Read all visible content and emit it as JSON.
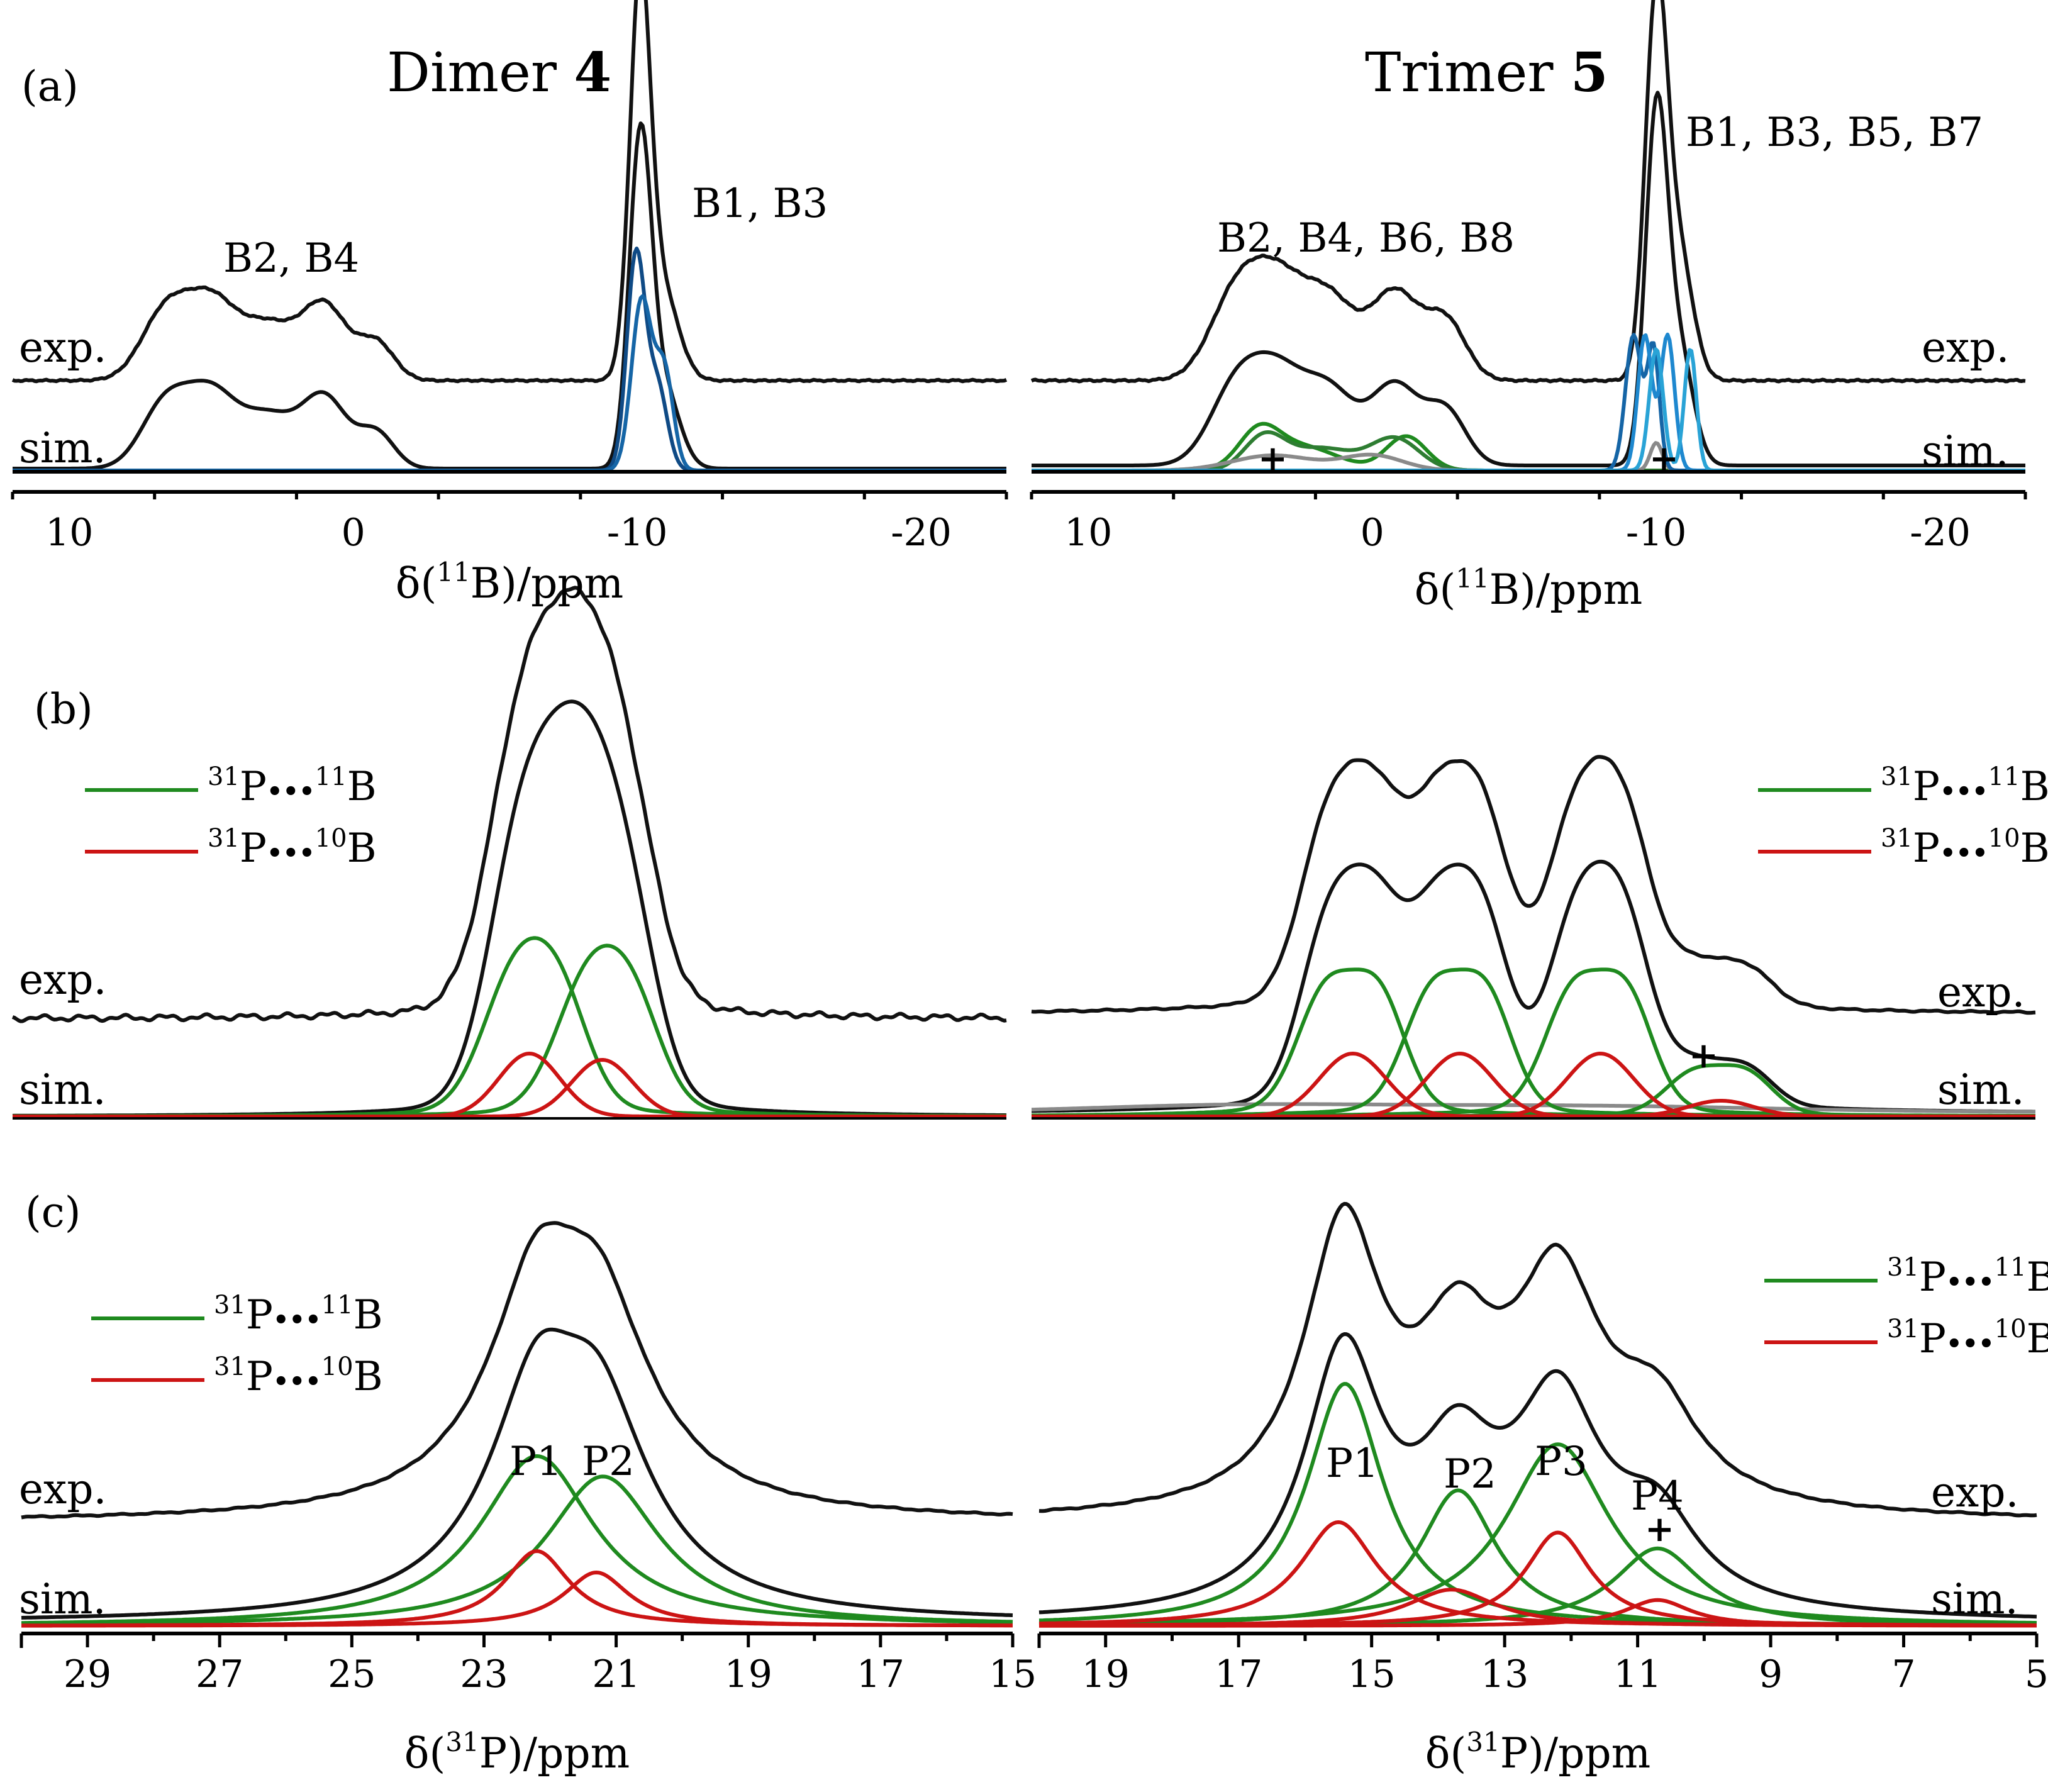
{
  "figure": {
    "panel_labels": [
      "(a)",
      "(b)",
      "(c)"
    ],
    "dimer_title": {
      "text": "Dimer ",
      "bold": "4"
    },
    "trimer_title": {
      "text": "Trimer ",
      "bold": "5"
    },
    "legend": {
      "line1_text": "P",
      "p_sup": "31",
      "dots": "•••",
      "b11_sup": "11",
      "b10_sup": "10",
      "b_text": "B",
      "label_11": "31P•••11B",
      "label_10": "31P•••10B"
    },
    "colors": {
      "black": "#111111",
      "green": "#1f8a1f",
      "red": "#cc1414",
      "blue1": "#1565a6",
      "blue2": "#1e88cf",
      "blue3": "#0f4a85",
      "gray": "#8a8a8a"
    }
  },
  "chart_data": [
    {
      "id": "a-left",
      "type": "line",
      "xlabel_main": "δ(",
      "xlabel_sup": "11",
      "xlabel_rest": "B)/ppm",
      "xlim": [
        12,
        -23
      ],
      "xticks": [
        "10",
        "0",
        "-10",
        "-20"
      ],
      "xtick_values": [
        10,
        0,
        -10,
        -20
      ],
      "row_labels": [
        "exp.",
        "sim."
      ],
      "peak_labels": [
        "B2, B4",
        "B1, B3"
      ],
      "series": [
        {
          "name": "exp.",
          "color": "black"
        },
        {
          "name": "sim.",
          "color": "black"
        },
        {
          "name": "B1 sim",
          "color": "blue"
        },
        {
          "name": "B3 sim",
          "color": "blue"
        }
      ]
    },
    {
      "id": "a-right",
      "type": "line",
      "xlabel_main": "δ(",
      "xlabel_sup": "11",
      "xlabel_rest": "B)/ppm",
      "xlim": [
        12,
        -23
      ],
      "xticks": [
        "10",
        "0",
        "-10",
        "-20"
      ],
      "xtick_values": [
        10,
        0,
        -10,
        -20
      ],
      "row_labels": [
        "exp.",
        "sim."
      ],
      "peak_labels": [
        "B2, B4, B6, B8",
        "B1, B3, B5, B7"
      ],
      "impurity_marks": [
        "+",
        "+"
      ],
      "series": [
        {
          "name": "exp.",
          "color": "black"
        },
        {
          "name": "sim.",
          "color": "black"
        },
        {
          "name": "B2/B4/B6/B8 sim",
          "color": "green"
        },
        {
          "name": "B1/B3/B5/B7 sim",
          "color": "blue"
        },
        {
          "name": "impurity",
          "color": "gray"
        }
      ]
    },
    {
      "id": "b-left",
      "type": "line",
      "xlim": [
        30,
        15
      ],
      "row_labels": [
        "exp.",
        "sim."
      ],
      "series": [
        {
          "name": "exp.",
          "color": "black"
        },
        {
          "name": "sim.",
          "color": "black"
        },
        {
          "name": "31P•••11B",
          "color": "green",
          "centers": [
            22.3,
            21.2
          ]
        },
        {
          "name": "31P•••10B",
          "color": "red",
          "centers": [
            22.2,
            21.1
          ]
        }
      ]
    },
    {
      "id": "b-right",
      "type": "line",
      "xlim": [
        20,
        5
      ],
      "row_labels": [
        "exp.",
        "sim."
      ],
      "impurity_marks": [
        "+"
      ],
      "series": [
        {
          "name": "exp.",
          "color": "black"
        },
        {
          "name": "sim.",
          "color": "black"
        },
        {
          "name": "31P•••11B",
          "color": "green",
          "centers": [
            15.3,
            13.7,
            11.6,
            9.8
          ]
        },
        {
          "name": "31P•••10B",
          "color": "red",
          "centers": [
            15.2,
            13.6,
            11.5,
            9.7
          ]
        }
      ]
    },
    {
      "id": "c-left",
      "type": "line",
      "xlabel_main": "δ(",
      "xlabel_sup": "31",
      "xlabel_rest": "P)/ppm",
      "xlim": [
        30,
        15
      ],
      "xticks": [
        "29",
        "27",
        "25",
        "23",
        "21",
        "19",
        "17",
        "15"
      ],
      "xtick_values": [
        29,
        27,
        25,
        23,
        21,
        19,
        17,
        15
      ],
      "row_labels": [
        "exp.",
        "sim."
      ],
      "peak_labels": [
        "P1",
        "P2"
      ],
      "series": [
        {
          "name": "exp.",
          "color": "black"
        },
        {
          "name": "sim.",
          "color": "black"
        },
        {
          "name": "31P•••11B",
          "color": "green",
          "centers": [
            22.2,
            21.2
          ]
        },
        {
          "name": "31P•••10B",
          "color": "red",
          "centers": [
            22.2,
            21.2
          ]
        }
      ]
    },
    {
      "id": "c-right",
      "type": "line",
      "xlabel_main": "δ(",
      "xlabel_sup": "31",
      "xlabel_rest": "P)/ppm",
      "xlim": [
        20,
        5
      ],
      "xticks": [
        "19",
        "17",
        "15",
        "13",
        "11",
        "9",
        "7",
        "5"
      ],
      "xtick_values": [
        19,
        17,
        15,
        13,
        11,
        9,
        7,
        5
      ],
      "row_labels": [
        "exp.",
        "sim."
      ],
      "peak_labels": [
        "P1",
        "P2",
        "P3",
        "P4"
      ],
      "impurity_marks": [
        "+"
      ],
      "series": [
        {
          "name": "exp.",
          "color": "black"
        },
        {
          "name": "sim.",
          "color": "black"
        },
        {
          "name": "31P•••11B",
          "color": "green",
          "centers": [
            15.4,
            13.7,
            12.2,
            10.7
          ]
        },
        {
          "name": "31P•••10B",
          "color": "red",
          "centers": [
            15.5,
            13.8,
            12.2,
            10.7
          ]
        }
      ]
    }
  ]
}
